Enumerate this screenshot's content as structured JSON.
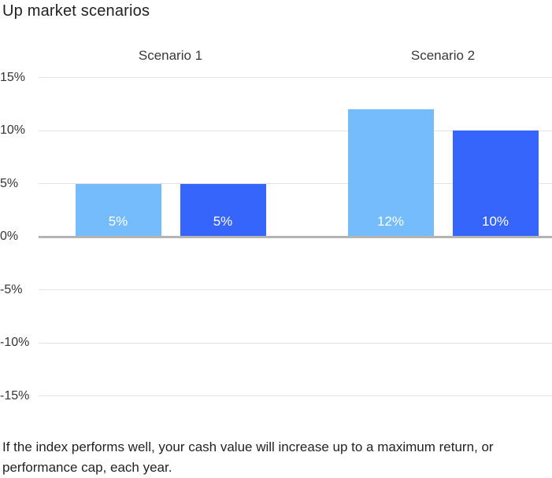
{
  "title": "Up market scenarios",
  "caption": "If the index performs well, your cash value will increase up to a maximum return, or performance cap, each year.",
  "chart_data": {
    "type": "bar",
    "title": "Up market scenarios",
    "groups": [
      "Scenario 1",
      "Scenario 2"
    ],
    "series": [
      {
        "name": "light-blue",
        "color": "#74BCFB",
        "values": [
          5,
          12
        ],
        "labels": [
          "5%",
          "12%"
        ]
      },
      {
        "name": "dark-blue",
        "color": "#3565FA",
        "values": [
          5,
          10
        ],
        "labels": [
          "5%",
          "10%"
        ]
      }
    ],
    "y_ticks": [
      {
        "label": "15%",
        "value": 15
      },
      {
        "label": "10%",
        "value": 10
      },
      {
        "label": "5%",
        "value": 5
      },
      {
        "label": "0%",
        "value": 0
      },
      {
        "label": "-5%",
        "value": -5
      },
      {
        "label": "-10%",
        "value": -10
      },
      {
        "label": "-15%",
        "value": -15
      }
    ],
    "ylim": [
      -15,
      15
    ],
    "grid": true,
    "legend": "none",
    "colors": {
      "gridline": "#e4e4e4",
      "zero_line": "#b4b4b4",
      "bar_label": "#ffffff",
      "background": "#ffffff"
    }
  }
}
